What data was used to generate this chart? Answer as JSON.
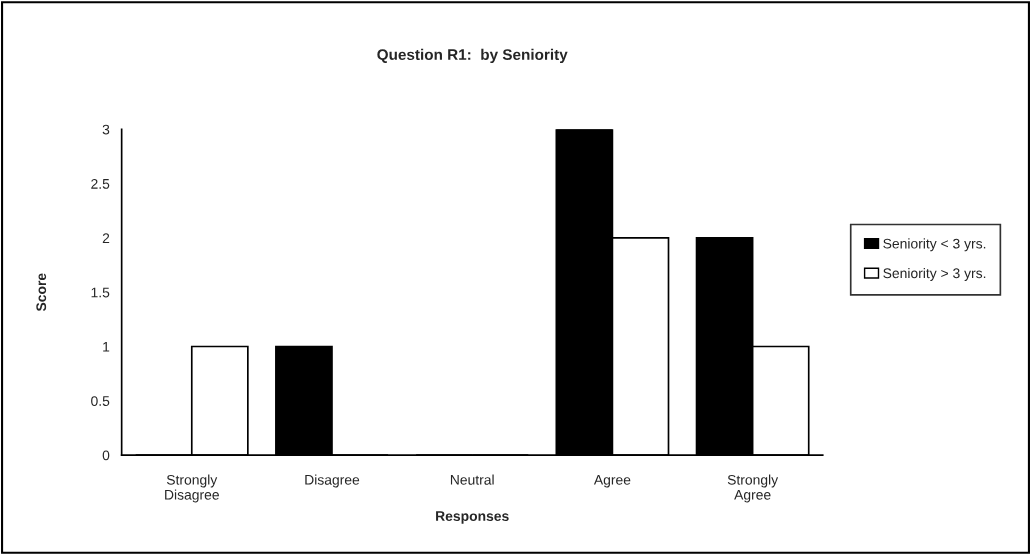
{
  "chart_data": {
    "type": "bar",
    "title": "Question R1:  by Seniority",
    "xlabel": "Responses",
    "ylabel": "Score",
    "categories": [
      "Strongly\nDisagree",
      "Disagree",
      "Neutral",
      "Agree",
      "Strongly\nAgree"
    ],
    "series": [
      {
        "name": "Seniority < 3 yrs.",
        "color": "#000000",
        "values": [
          0,
          1,
          0,
          3,
          2
        ]
      },
      {
        "name": "Seniority > 3 yrs.",
        "color": "#ffffff",
        "values": [
          1,
          0,
          0,
          2,
          1
        ]
      }
    ],
    "ylim": [
      0,
      3
    ],
    "yticks": [
      0,
      0.5,
      1,
      1.5,
      2,
      2.5,
      3
    ],
    "grid": false,
    "legend": "right"
  }
}
